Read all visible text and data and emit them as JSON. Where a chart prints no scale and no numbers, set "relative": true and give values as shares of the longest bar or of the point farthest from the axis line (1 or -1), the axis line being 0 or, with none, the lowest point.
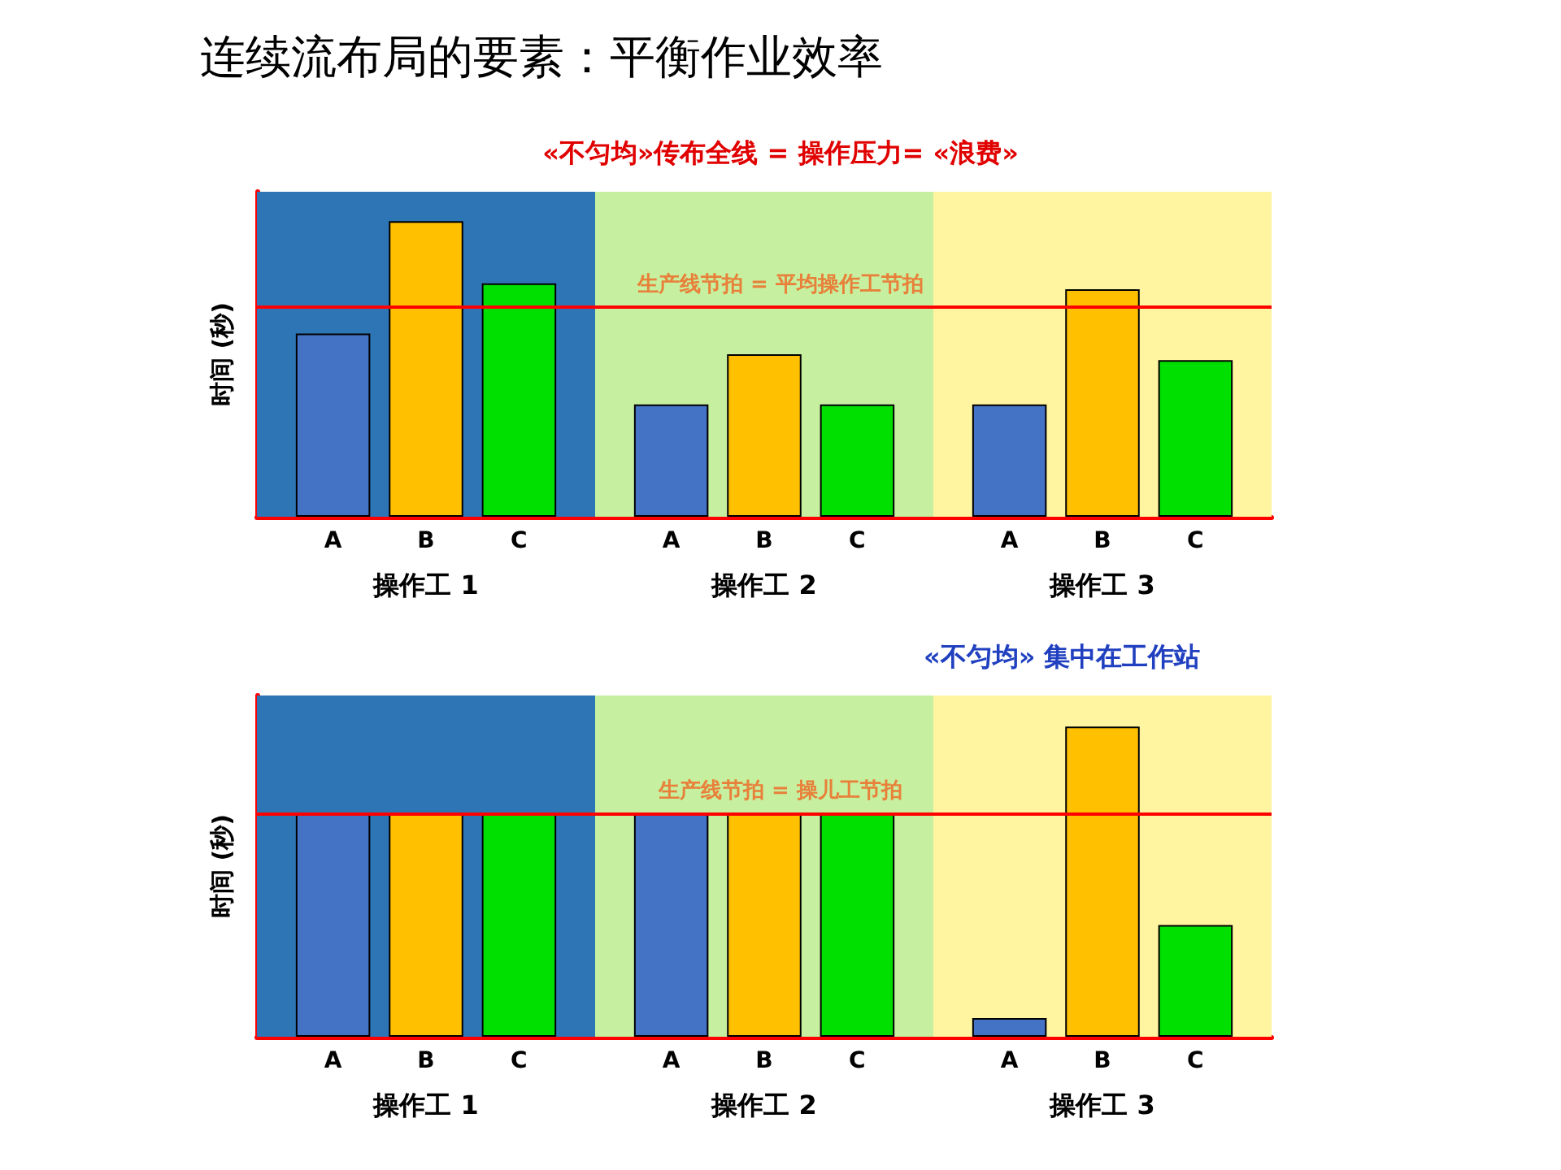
{
  "chart_data": [
    {
      "type": "bar",
      "title": "连续流布局的要素：平衡作业效率",
      "ylabel": "时间 (秒)",
      "relative": true,
      "categories": [
        "操作工 1",
        "操作工 2",
        "操作工 3"
      ],
      "series": [
        {
          "name": "A",
          "color": "#4472c4",
          "values": [
            0.62,
            0.38,
            0.38
          ]
        },
        {
          "name": "B",
          "color": "#ffc000",
          "values": [
            1,
            0.55,
            0.77
          ]
        },
        {
          "name": "C",
          "color": "#00e000",
          "values": [
            0.79,
            0.38,
            0.53
          ]
        }
      ],
      "ref_lines": [
        {
          "axis": "y",
          "value": 0.71,
          "label": "生产线节拍 = 平均操作工节拍",
          "color": "#ff0000"
        }
      ],
      "bands": [
        {
          "axis": "x",
          "from": "操作工 1",
          "to": "操作工 1",
          "color": "#2e75b6"
        },
        {
          "axis": "x",
          "from": "操作工 2",
          "to": "操作工 2",
          "color": "#c6f0a0"
        },
        {
          "axis": "x",
          "from": "操作工 3",
          "to": "操作工 3",
          "color": "#fff5a0"
        }
      ],
      "annotations": [
        "«不匀均»传布全线 = 操作压力= «浪费»"
      ]
    },
    {
      "type": "bar",
      "ylabel": "时间 (秒)",
      "relative": true,
      "categories": [
        "操作工 1",
        "操作工 2",
        "操作工 3"
      ],
      "series": [
        {
          "name": "A",
          "color": "#4472c4",
          "values": [
            0.72,
            0.72,
            0.06
          ]
        },
        {
          "name": "B",
          "color": "#ffc000",
          "values": [
            0.72,
            0.72,
            1
          ]
        },
        {
          "name": "C",
          "color": "#00e000",
          "values": [
            0.72,
            0.72,
            0.36
          ]
        }
      ],
      "ref_lines": [
        {
          "axis": "y",
          "value": 0.72,
          "label": "生产线节拍 = 操儿工节拍",
          "color": "#ff0000"
        }
      ],
      "bands": [
        {
          "axis": "x",
          "from": "操作工 1",
          "to": "操作工 1",
          "color": "#2e75b6"
        },
        {
          "axis": "x",
          "from": "操作工 2",
          "to": "操作工 2",
          "color": "#c6f0a0"
        },
        {
          "axis": "x",
          "from": "操作工 3",
          "to": "操作工 3",
          "color": "#fff5a0"
        }
      ],
      "annotations": [
        "«不匀均» 集中在工作站"
      ]
    }
  ]
}
